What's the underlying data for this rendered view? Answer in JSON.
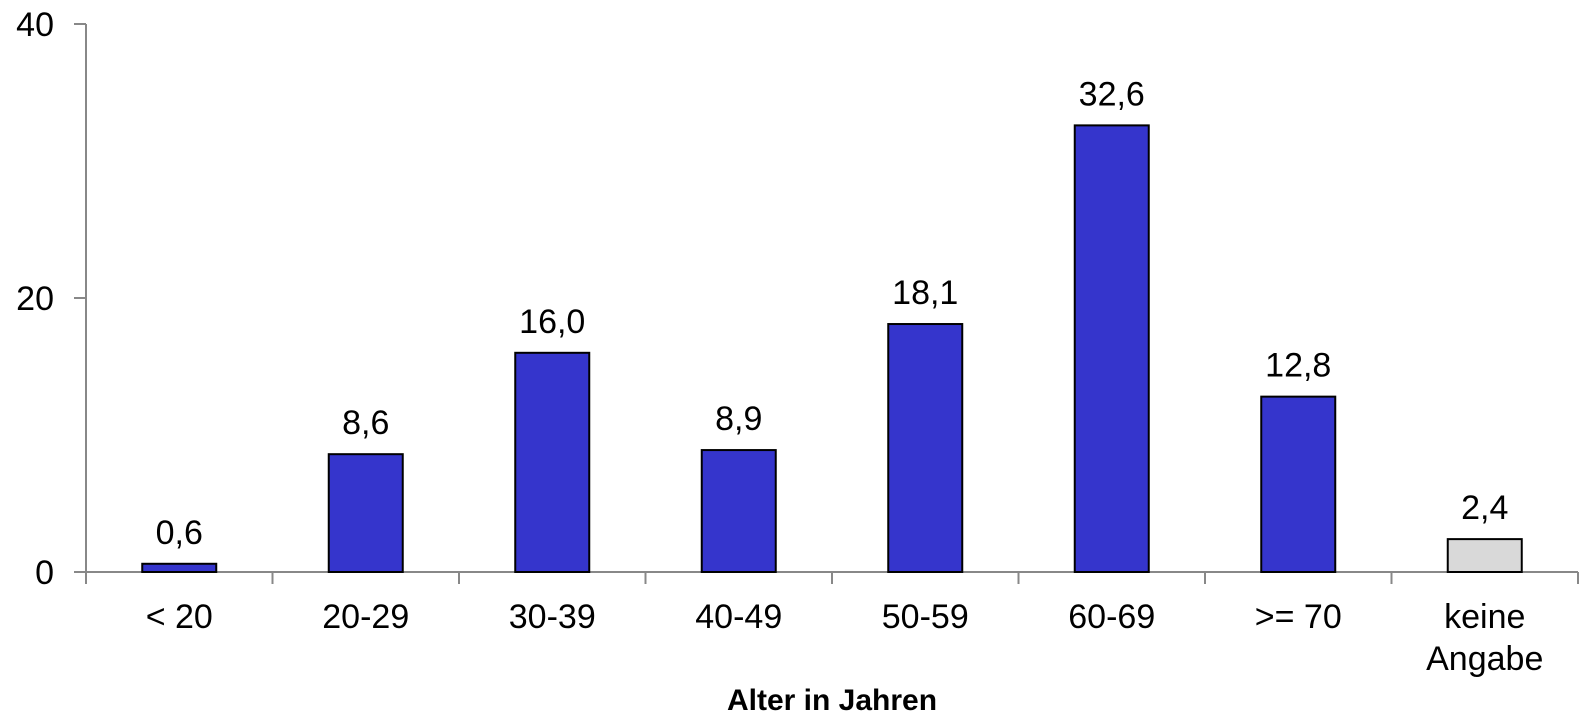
{
  "chart_data": {
    "type": "bar",
    "title": "",
    "xlabel": "Alter in Jahren",
    "ylabel": "",
    "ylim": [
      0,
      40
    ],
    "yticks": [
      "0",
      "20",
      "40"
    ],
    "ytick_values": [
      0,
      20,
      40
    ],
    "grid": false,
    "categories": [
      [
        "< 20"
      ],
      [
        "20-29"
      ],
      [
        "30-39"
      ],
      [
        "40-49"
      ],
      [
        "50-59"
      ],
      [
        "60-69"
      ],
      [
        ">= 70"
      ],
      [
        "keine",
        "Angabe"
      ]
    ],
    "values": [
      0.6,
      8.6,
      16.0,
      8.9,
      18.1,
      32.6,
      12.8,
      2.4
    ],
    "value_labels": [
      "0,6",
      "8,6",
      "16,0",
      "8,9",
      "18,1",
      "32,6",
      "12,8",
      "2,4"
    ],
    "bar_colors": [
      "#3535cc",
      "#3535cc",
      "#3535cc",
      "#3535cc",
      "#3535cc",
      "#3535cc",
      "#3535cc",
      "#d9d9d9"
    ],
    "axis_color": "#888888"
  }
}
